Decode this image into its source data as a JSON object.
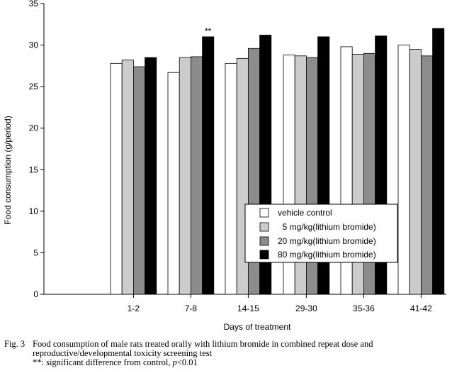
{
  "chart_data": {
    "type": "bar",
    "title": "",
    "xlabel": "Days of treatment",
    "ylabel": "Food consumption (g/period)",
    "ylim": [
      0,
      35
    ],
    "yticks": [
      0,
      5,
      10,
      15,
      20,
      25,
      30,
      35
    ],
    "categories": [
      "1-2",
      "7-8",
      "14-15",
      "29-30",
      "35-36",
      "41-42"
    ],
    "series": [
      {
        "name": "vehicle control",
        "color": "#ffffff",
        "values": [
          27.8,
          26.7,
          27.8,
          28.8,
          29.8,
          30.0
        ]
      },
      {
        "name": "5 mg/kg(lithium bromide)",
        "color": "#cccccc",
        "values": [
          28.2,
          28.5,
          28.4,
          28.7,
          28.9,
          29.5
        ]
      },
      {
        "name": "20 mg/kg(lithium bromide)",
        "color": "#8c8c8c",
        "values": [
          27.4,
          28.6,
          29.6,
          28.5,
          29.0,
          28.7
        ]
      },
      {
        "name": "80 mg/kg(lithium bromide)",
        "color": "#000000",
        "values": [
          28.5,
          31.0,
          31.2,
          31.0,
          31.1,
          32.0
        ]
      }
    ],
    "annotations": [
      {
        "text": "**",
        "category": "7-8",
        "series": "80 mg/kg(lithium bromide)"
      }
    ],
    "legend_position": "bottom-right",
    "grid": false
  },
  "caption": {
    "fig_label": "Fig. 3",
    "line1": "Food consumption of male rats treated orally with lithium bromide in combined repeat dose and",
    "line2": "reproductive/developmental toxicity screening test",
    "note_prefix": "**: significant difference from control,",
    "note_italic": "p",
    "note_suffix": "<0.01"
  }
}
